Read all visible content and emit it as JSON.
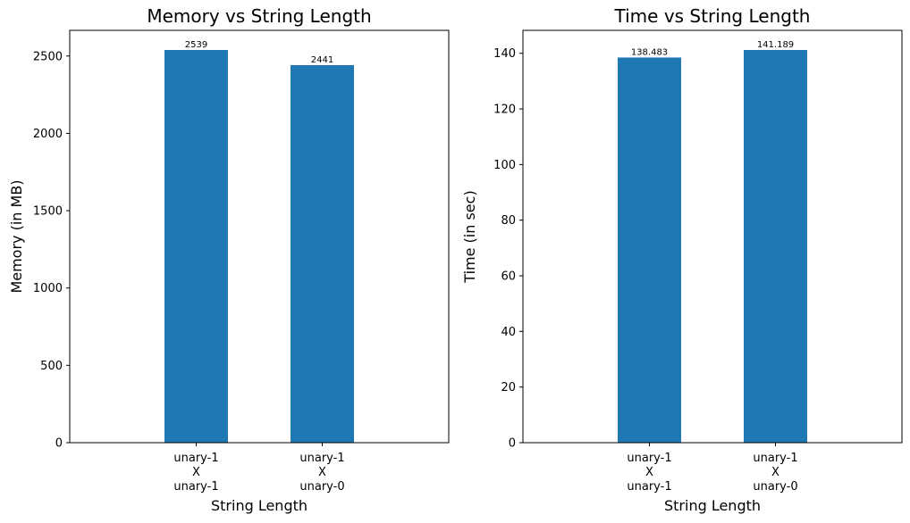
{
  "chart_data": [
    {
      "type": "bar",
      "title": "Memory vs String Length",
      "xlabel": "String Length",
      "ylabel": "Memory (in MB)",
      "categories": [
        [
          "unary-1",
          "X",
          "unary-1"
        ],
        [
          "unary-1",
          "X",
          "unary-0"
        ]
      ],
      "values": [
        2539,
        2441
      ],
      "data_labels": [
        "2539",
        "2441"
      ],
      "yticks": [
        0,
        500,
        1000,
        1500,
        2000,
        2500
      ],
      "ylim": [
        0,
        2666
      ],
      "grid": false,
      "bar_color": "#1f77b4"
    },
    {
      "type": "bar",
      "title": "Time vs String Length",
      "xlabel": "String Length",
      "ylabel": "Time (in sec)",
      "categories": [
        [
          "unary-1",
          "X",
          "unary-1"
        ],
        [
          "unary-1",
          "X",
          "unary-0"
        ]
      ],
      "values": [
        138.483,
        141.189
      ],
      "data_labels": [
        "138.483",
        "141.189"
      ],
      "yticks": [
        0,
        20,
        40,
        60,
        80,
        100,
        120,
        140
      ],
      "ylim": [
        0,
        148.25
      ],
      "grid": false,
      "bar_color": "#1f77b4"
    }
  ]
}
